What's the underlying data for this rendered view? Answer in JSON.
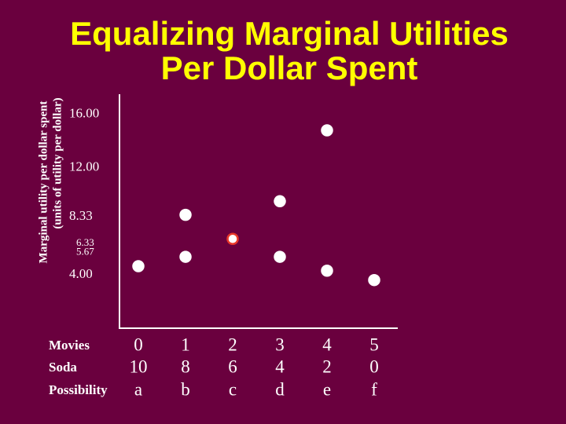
{
  "chart_data": {
    "type": "scatter",
    "title": [
      "Equalizing Marginal Utilities",
      "Per Dollar Spent"
    ],
    "y_label": [
      "Marginal utility per dollar spent",
      "(units of utility per dollar)"
    ],
    "x": [
      0,
      1,
      1,
      2,
      3,
      3,
      4,
      4,
      5
    ],
    "values": [
      4.64,
      8.48,
      5.34,
      6.68,
      9.5,
      5.34,
      14.8,
      4.3,
      3.6
    ],
    "colors": [
      "#ffffff",
      "#ffffff",
      "#ffffff",
      "#ffffff",
      "#ffffff",
      "#ffffff",
      "#ffffff",
      "#ffffff",
      "#ffffff"
    ],
    "outline_colors": [
      "#ffffff",
      "#ffffff",
      "#ffffff",
      "#e8382a",
      "#ffffff",
      "#ffffff",
      "#ffffff",
      "#ffffff",
      "#ffffff"
    ],
    "xlim": [
      -0.4,
      5.5
    ],
    "ylim": [
      0,
      17.5
    ],
    "yticks": [
      {
        "value": 16,
        "label": "16.00"
      },
      {
        "value": 12,
        "label": "12.00"
      },
      8.33,
      6.33,
      5.67,
      {
        "value": 4,
        "label": "4.00"
      }
    ],
    "table": [
      {
        "label": "Movies",
        "values": [
          0,
          1,
          2,
          3,
          4,
          5
        ]
      },
      {
        "label": "Soda",
        "values": [
          10,
          8,
          6,
          4,
          2,
          0
        ]
      },
      {
        "label": "Possibility",
        "values": [
          "a",
          "b",
          "c",
          "d",
          "e",
          "f"
        ]
      }
    ]
  }
}
